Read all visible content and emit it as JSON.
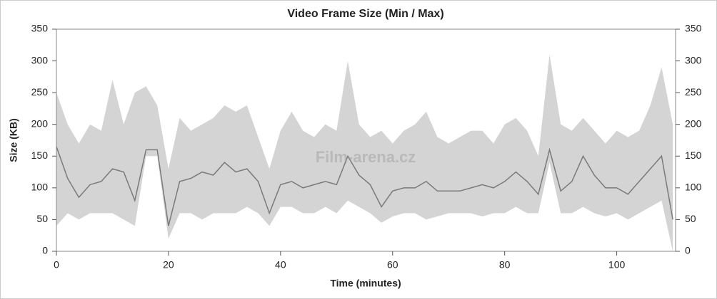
{
  "chart_data": {
    "type": "area",
    "title": "Video Frame Size (Min / Max)",
    "x_label": "Time (minutes)",
    "y_label": "Size (KB)",
    "watermark": "Film-arena.cz",
    "xlim": [
      0,
      110.5
    ],
    "xticks": [
      0,
      20,
      40,
      60,
      80,
      100
    ],
    "ylim": [
      0,
      350
    ],
    "yticks": [
      0,
      50,
      100,
      150,
      200,
      250,
      300,
      350
    ],
    "y2lim": [
      0,
      350
    ],
    "y2ticks": [
      0,
      50,
      100,
      150,
      200,
      250,
      300,
      350
    ],
    "x": [
      0,
      2,
      4,
      6,
      8,
      10,
      12,
      14,
      16,
      18,
      20,
      22,
      24,
      26,
      28,
      30,
      32,
      34,
      36,
      38,
      40,
      42,
      44,
      46,
      48,
      50,
      52,
      54,
      56,
      58,
      60,
      62,
      64,
      66,
      68,
      70,
      72,
      74,
      76,
      78,
      80,
      82,
      84,
      86,
      88,
      90,
      92,
      94,
      96,
      98,
      100,
      102,
      104,
      106,
      108,
      110
    ],
    "series": [
      {
        "style": "area",
        "color": "#d4d4d4",
        "values": [
          250,
          200,
          170,
          200,
          190,
          270,
          200,
          250,
          260,
          230,
          130,
          210,
          190,
          200,
          210,
          230,
          220,
          230,
          180,
          130,
          190,
          220,
          190,
          180,
          200,
          190,
          300,
          200,
          180,
          190,
          170,
          190,
          200,
          220,
          180,
          170,
          180,
          190,
          190,
          170,
          200,
          210,
          190,
          150,
          310,
          200,
          190,
          210,
          190,
          170,
          190,
          180,
          190,
          230,
          290,
          200
        ]
      },
      {
        "style": "area",
        "color": "#ffffff",
        "values": [
          40,
          60,
          50,
          60,
          60,
          60,
          50,
          40,
          150,
          150,
          20,
          60,
          60,
          50,
          60,
          60,
          60,
          70,
          60,
          40,
          70,
          70,
          60,
          60,
          70,
          60,
          80,
          70,
          60,
          45,
          55,
          60,
          60,
          50,
          55,
          60,
          60,
          60,
          55,
          60,
          60,
          70,
          60,
          60,
          140,
          60,
          60,
          70,
          60,
          55,
          60,
          50,
          60,
          70,
          80,
          0
        ]
      },
      {
        "style": "line",
        "color": "#7a7a7a",
        "values": [
          165,
          115,
          85,
          105,
          110,
          130,
          125,
          80,
          160,
          160,
          40,
          110,
          115,
          125,
          120,
          140,
          125,
          130,
          110,
          60,
          105,
          110,
          100,
          105,
          110,
          105,
          150,
          120,
          105,
          70,
          95,
          100,
          100,
          110,
          95,
          95,
          95,
          100,
          105,
          100,
          110,
          125,
          110,
          90,
          160,
          95,
          110,
          150,
          120,
          100,
          100,
          90,
          110,
          130,
          150,
          50
        ]
      }
    ]
  }
}
